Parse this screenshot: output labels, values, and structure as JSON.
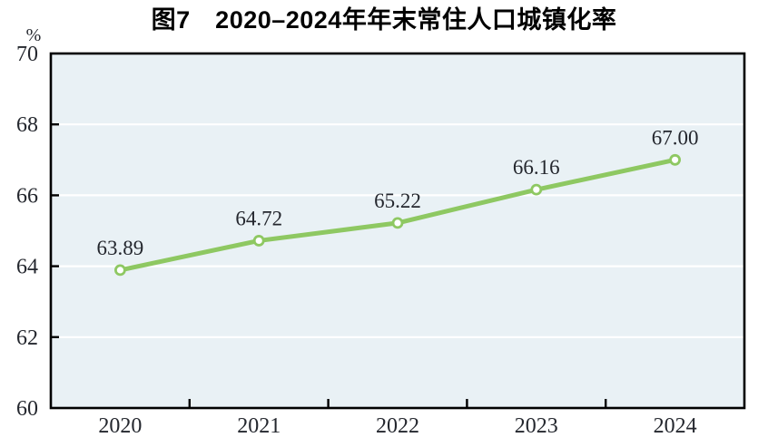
{
  "title": "图7　2020–2024年年末常住人口城镇化率",
  "unit_label": "%",
  "colors": {
    "line": "#8ec862",
    "marker_fill": "#ffffff",
    "plot_background": "#e9f1f5",
    "gridline": "#ffffff",
    "axis": "#000000",
    "label_text": "#24272e",
    "page_background": "#ffffff"
  },
  "chart_data": {
    "type": "line",
    "title": "图7　2020–2024年年末常住人口城镇化率",
    "categories": [
      "2020",
      "2021",
      "2022",
      "2023",
      "2024"
    ],
    "values": [
      63.89,
      64.72,
      65.22,
      66.16,
      67.0
    ],
    "data_labels": [
      "63.89",
      "64.72",
      "65.22",
      "66.16",
      "67.00"
    ],
    "xlabel": "",
    "ylabel": "%",
    "ylim": [
      60,
      70
    ],
    "yticks": [
      60,
      62,
      64,
      66,
      68,
      70
    ],
    "grid": "horizontal white gridlines on light blue plot area",
    "legend": "none",
    "marker": "open circle"
  }
}
